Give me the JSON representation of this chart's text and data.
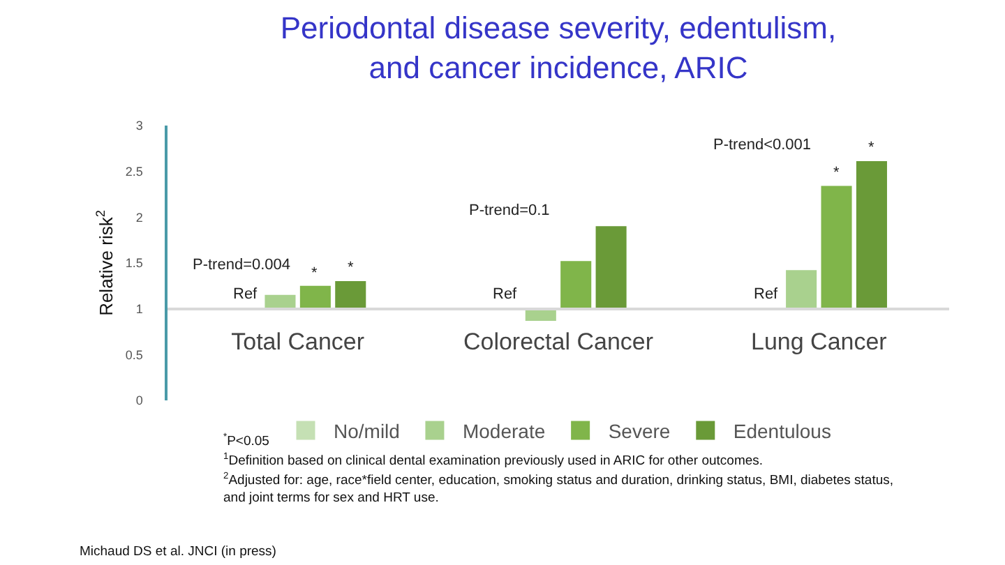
{
  "chart_data": {
    "type": "bar",
    "title": "Periodontal disease severity, edentulism,\nand cancer incidence, ARIC",
    "ylabel": "Relative risk$^{2}$",
    "categories": [
      "Total Cancer",
      "Colorectal Cancer",
      "Lung Cancer"
    ],
    "series": [
      {
        "name": "No/mild",
        "color": "#c5e0b4",
        "base": [
          1,
          1,
          1
        ],
        "values": [
          0,
          0,
          0
        ],
        "value_labels": [
          "Ref",
          "Ref",
          "Ref"
        ]
      },
      {
        "name": "Moderate",
        "color": "#a9d18e",
        "base": [
          1,
          1,
          1
        ],
        "values": [
          0.14,
          -0.12,
          0.41
        ]
      },
      {
        "name": "Severe",
        "color": "#80b54a",
        "base": [
          1,
          1,
          1
        ],
        "values": [
          0.24,
          0.51,
          1.33
        ],
        "value_labels": [
          "*",
          null,
          "*"
        ]
      },
      {
        "name": "Edentulous",
        "color": "#6a9a38",
        "base": [
          1,
          1,
          1
        ],
        "values": [
          0.29,
          0.89,
          1.6
        ],
        "value_labels": [
          "*",
          null,
          "*"
        ]
      }
    ],
    "ylim": [
      0,
      3
    ],
    "yticks": [
      0,
      0.5,
      1,
      1.5,
      2,
      2.5,
      3
    ],
    "grid": false,
    "legend": "bottom",
    "annotations": [
      "P-trend=0.004",
      "P-trend=0.1",
      "P-trend<0.001",
      "$^{*}$P<0.05",
      "$^{1}$Definition based on clinical dental examination previously used in ARIC for other outcomes.",
      "$^{2}$Adjusted for: age, race*field center, education, smoking status and duration, drinking status, BMI, diabetes status, and joint terms for sex and HRT use.",
      "Michaud DS et al. JNCI (in press)"
    ]
  }
}
